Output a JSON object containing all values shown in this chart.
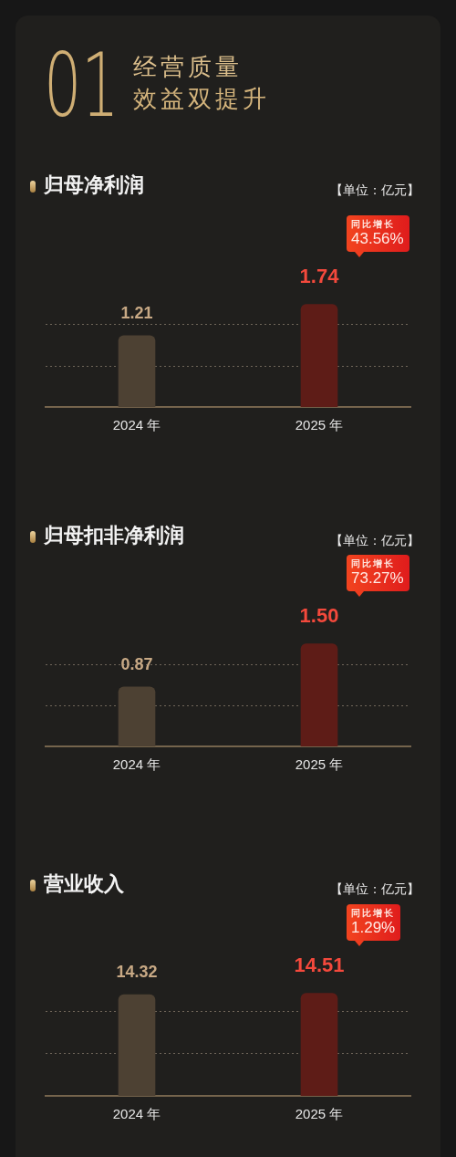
{
  "chart_data": [
    {
      "type": "other",
      "title": "经营质量",
      "subtitle": "效益双提升",
      "annotations": [
        "01"
      ]
    },
    {
      "type": "bar",
      "title": "归母净利润",
      "subtitle": "【单位：亿元】",
      "categories": [
        "2024 年",
        "2025 年"
      ],
      "values": [
        1.21,
        1.74
      ],
      "colors": [
        "#4d4133",
        "#5e1c17"
      ],
      "ref_lines": [
        {
          "axis": "y",
          "value": 0.7,
          "color": "#70665a",
          "line_style": "dotted"
        },
        {
          "axis": "y",
          "value": 1.4,
          "color": "#70665a",
          "line_style": "dotted"
        }
      ],
      "tick_labels": "x",
      "data_labels": true,
      "annotations": [
        "同比增长\n43.56%"
      ]
    },
    {
      "type": "bar",
      "title": "归母扣非净利润",
      "subtitle": "【单位：亿元】",
      "categories": [
        "2024 年",
        "2025 年"
      ],
      "values": [
        0.87,
        1.5
      ],
      "colors": [
        "#4d4133",
        "#5e1c17"
      ],
      "ref_lines": [
        {
          "axis": "y",
          "value": 0.6,
          "color": "#70665a",
          "line_style": "dotted"
        },
        {
          "axis": "y",
          "value": 1.2,
          "color": "#70665a",
          "line_style": "dotted"
        }
      ],
      "tick_labels": "x",
      "value_labels": [
        "0.87",
        "1.50"
      ],
      "annotations": [
        "同比增长\n73.27%"
      ]
    },
    {
      "type": "bar",
      "title": "营业收入",
      "subtitle": "【单位：亿元】",
      "categories": [
        "2024 年",
        "2025 年"
      ],
      "values": [
        14.32,
        14.51
      ],
      "colors": [
        "#4d4133",
        "#5e1c17"
      ],
      "ref_lines": [
        {
          "axis": "y",
          "value": 6,
          "color": "#70665a",
          "line_style": "dotted"
        },
        {
          "axis": "y",
          "value": 12,
          "color": "#70665a",
          "line_style": "dotted"
        }
      ],
      "tick_labels": "x",
      "data_labels": true,
      "annotations": [
        "同比增长\n1.29%"
      ]
    }
  ]
}
